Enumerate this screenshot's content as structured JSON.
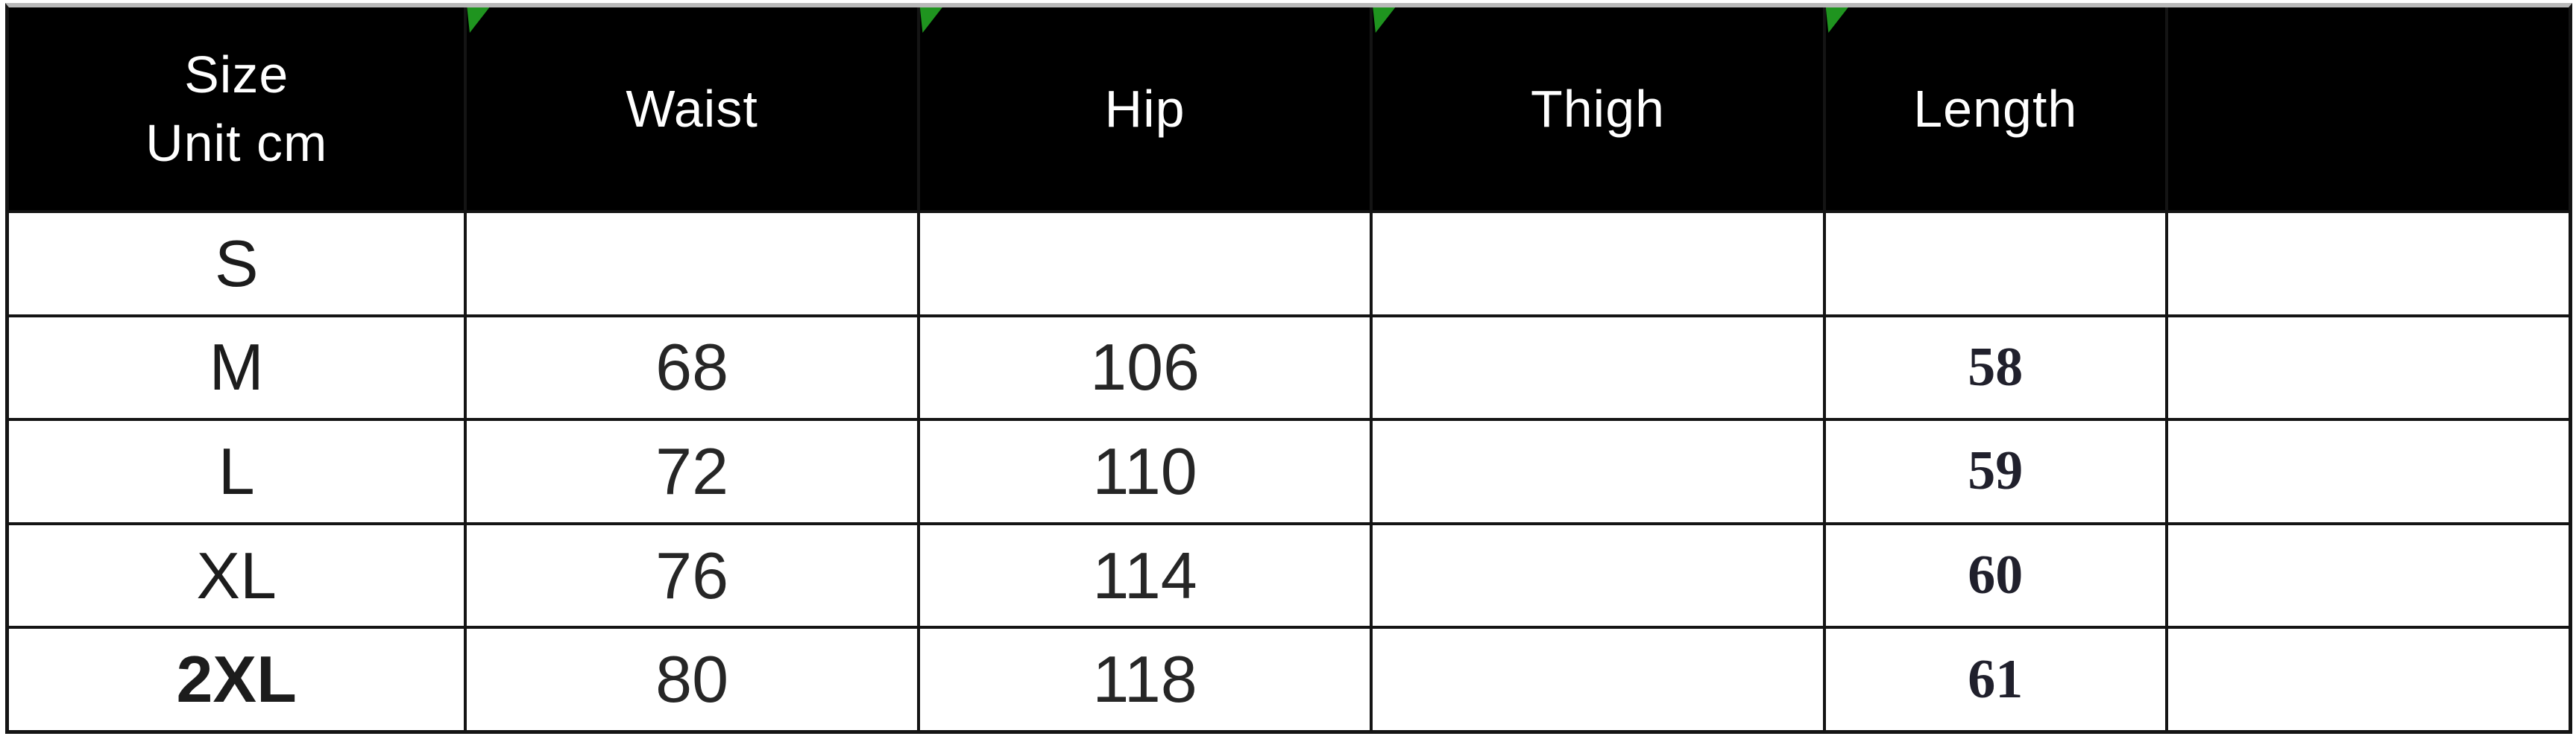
{
  "table": {
    "header": {
      "size_line1": "Size",
      "size_line2": "Unit cm",
      "columns": [
        "Waist",
        "Hip",
        "Thigh",
        "Length",
        ""
      ]
    },
    "rows": [
      [
        "S",
        "",
        "",
        "",
        "",
        ""
      ],
      [
        "M",
        "68",
        "106",
        "",
        "58",
        ""
      ],
      [
        "L",
        "72",
        "110",
        "",
        "59",
        ""
      ],
      [
        "XL",
        "76",
        "114",
        "",
        "60",
        ""
      ],
      [
        "2XL",
        "80",
        "118",
        "",
        "61",
        ""
      ]
    ]
  },
  "colors": {
    "header_bg": "#000000",
    "header_text": "#ffffff",
    "grid_line": "#141414",
    "flag_green": "#1f941f",
    "top_strip_gray": "#b9b9b9"
  },
  "icons": {
    "corner_flag": "green-corner-flag"
  },
  "chart_data": {
    "type": "table",
    "title": "Size Unit cm",
    "units": "cm",
    "columns": [
      "Size",
      "Waist",
      "Hip",
      "Thigh",
      "Length"
    ],
    "rows": [
      {
        "size": "S",
        "waist": null,
        "hip": null,
        "thigh": null,
        "length": null
      },
      {
        "size": "M",
        "waist": 68,
        "hip": 106,
        "thigh": null,
        "length": 58
      },
      {
        "size": "L",
        "waist": 72,
        "hip": 110,
        "thigh": null,
        "length": 59
      },
      {
        "size": "XL",
        "waist": 76,
        "hip": 114,
        "thigh": null,
        "length": 60
      },
      {
        "size": "2XL",
        "waist": 80,
        "hip": 118,
        "thigh": null,
        "length": 61
      }
    ],
    "layout": {
      "header_style": "black background, white text",
      "flagged_header_cells": [
        "Waist",
        "Hip",
        "Thigh",
        "Length"
      ],
      "empty_columns": [
        "Thigh",
        "trailing blank column"
      ]
    }
  }
}
